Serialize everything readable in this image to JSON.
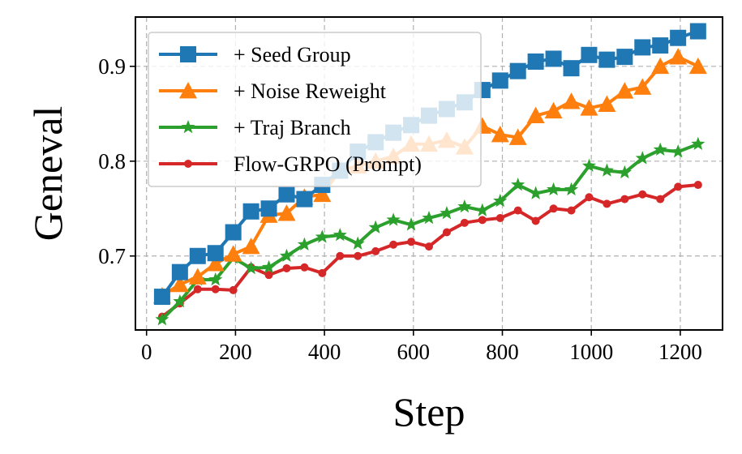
{
  "chart_data": {
    "type": "line",
    "title": "",
    "xlabel": "Step",
    "ylabel": "Geneval",
    "xlim": [
      -25,
      1295
    ],
    "ylim": [
      0.622,
      0.952
    ],
    "xticks": [
      0,
      200,
      400,
      600,
      800,
      1000,
      1200
    ],
    "yticks": [
      0.7,
      0.8,
      0.9
    ],
    "ytick_labels": [
      "0.7",
      "0.8",
      "0.9"
    ],
    "grid": true,
    "legend_position": "upper-left",
    "series": [
      {
        "name": "+ Seed Group",
        "color": "#1f77b4",
        "marker": "square",
        "x": [
          35,
          75,
          115,
          155,
          195,
          235,
          275,
          315,
          355,
          395,
          435,
          475,
          515,
          555,
          595,
          635,
          675,
          715,
          755,
          795,
          835,
          875,
          915,
          955,
          995,
          1035,
          1075,
          1115,
          1155,
          1195,
          1240
        ],
        "y": [
          0.657,
          0.683,
          0.7,
          0.703,
          0.725,
          0.747,
          0.75,
          0.765,
          0.76,
          0.775,
          0.79,
          0.81,
          0.82,
          0.83,
          0.838,
          0.848,
          0.855,
          0.862,
          0.875,
          0.885,
          0.895,
          0.905,
          0.908,
          0.898,
          0.912,
          0.907,
          0.91,
          0.92,
          0.922,
          0.93,
          0.937
        ]
      },
      {
        "name": "+ Noise Reweight",
        "color": "#ff7f0e",
        "marker": "triangle",
        "x": [
          35,
          75,
          115,
          155,
          195,
          235,
          275,
          315,
          355,
          395,
          435,
          475,
          515,
          555,
          595,
          635,
          675,
          715,
          755,
          795,
          835,
          875,
          915,
          955,
          995,
          1035,
          1075,
          1115,
          1155,
          1195,
          1240
        ],
        "y": [
          0.658,
          0.67,
          0.678,
          0.692,
          0.702,
          0.71,
          0.743,
          0.745,
          0.762,
          0.765,
          0.79,
          0.795,
          0.8,
          0.805,
          0.818,
          0.818,
          0.822,
          0.815,
          0.837,
          0.828,
          0.825,
          0.848,
          0.853,
          0.863,
          0.856,
          0.86,
          0.874,
          0.878,
          0.9,
          0.91,
          0.9
        ]
      },
      {
        "name": "+ Traj Branch",
        "color": "#2ca02c",
        "marker": "star",
        "x": [
          35,
          75,
          115,
          155,
          195,
          235,
          275,
          315,
          355,
          395,
          435,
          475,
          515,
          555,
          595,
          635,
          675,
          715,
          755,
          795,
          835,
          875,
          915,
          955,
          995,
          1035,
          1075,
          1115,
          1155,
          1195,
          1240
        ],
        "y": [
          0.633,
          0.652,
          0.675,
          0.675,
          0.698,
          0.687,
          0.688,
          0.7,
          0.712,
          0.72,
          0.722,
          0.713,
          0.73,
          0.738,
          0.733,
          0.74,
          0.745,
          0.752,
          0.748,
          0.758,
          0.775,
          0.766,
          0.77,
          0.77,
          0.795,
          0.79,
          0.788,
          0.803,
          0.812,
          0.81,
          0.818
        ]
      },
      {
        "name": "Flow-GRPO (Prompt)",
        "color": "#d62728",
        "marker": "circle",
        "x": [
          35,
          75,
          115,
          155,
          195,
          235,
          275,
          315,
          355,
          395,
          435,
          475,
          515,
          555,
          595,
          635,
          675,
          715,
          755,
          795,
          835,
          875,
          915,
          955,
          995,
          1035,
          1075,
          1115,
          1155,
          1195,
          1240
        ],
        "y": [
          0.636,
          0.65,
          0.665,
          0.665,
          0.664,
          0.688,
          0.68,
          0.687,
          0.688,
          0.682,
          0.7,
          0.7,
          0.705,
          0.712,
          0.715,
          0.71,
          0.725,
          0.735,
          0.738,
          0.74,
          0.748,
          0.737,
          0.75,
          0.748,
          0.762,
          0.755,
          0.76,
          0.765,
          0.76,
          0.773,
          0.775
        ]
      }
    ]
  }
}
